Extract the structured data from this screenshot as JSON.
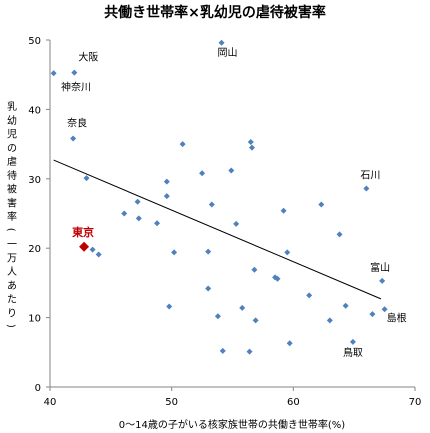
{
  "chart_data": {
    "type": "scatter",
    "title": "共働き世帯率×乳幼児の虐待被害率",
    "xlabel": "0〜14歳の子がいる核家族世帯の共働き世帯率(%)",
    "ylabel": "乳幼児の虐待被害率(一万人あたり)",
    "xlim": [
      40,
      70
    ],
    "ylim": [
      0,
      50
    ],
    "x_ticks": [
      40,
      50,
      60,
      70
    ],
    "y_ticks": [
      0,
      10,
      20,
      30,
      40,
      50
    ],
    "grid": false,
    "colors": {
      "points": "#4f81bd",
      "highlight": "#c00000",
      "trend": "#000000",
      "axis": "#868686"
    },
    "trendline": {
      "x": [
        40.3,
        67.2
      ],
      "y": [
        32.7,
        12.7
      ]
    },
    "points": [
      {
        "x": 40.3,
        "y": 45.2,
        "label": ""
      },
      {
        "x": 42.0,
        "y": 45.3,
        "label": "大阪"
      },
      {
        "x": 41.9,
        "y": 35.8,
        "label": "奈良"
      },
      {
        "x": 43.0,
        "y": 30.1,
        "label": ""
      },
      {
        "x": 43.5,
        "y": 19.8,
        "label": ""
      },
      {
        "x": 44.0,
        "y": 19.1,
        "label": ""
      },
      {
        "x": 46.1,
        "y": 25.0,
        "label": ""
      },
      {
        "x": 47.2,
        "y": 26.7,
        "label": ""
      },
      {
        "x": 47.3,
        "y": 24.3,
        "label": ""
      },
      {
        "x": 48.8,
        "y": 23.6,
        "label": ""
      },
      {
        "x": 49.6,
        "y": 29.6,
        "label": ""
      },
      {
        "x": 49.6,
        "y": 27.5,
        "label": ""
      },
      {
        "x": 49.8,
        "y": 11.6,
        "label": ""
      },
      {
        "x": 50.2,
        "y": 19.4,
        "label": ""
      },
      {
        "x": 50.9,
        "y": 35.0,
        "label": ""
      },
      {
        "x": 52.5,
        "y": 30.8,
        "label": ""
      },
      {
        "x": 53.0,
        "y": 19.5,
        "label": ""
      },
      {
        "x": 53.0,
        "y": 14.2,
        "label": ""
      },
      {
        "x": 53.3,
        "y": 26.3,
        "label": ""
      },
      {
        "x": 53.8,
        "y": 10.2,
        "label": ""
      },
      {
        "x": 54.2,
        "y": 5.2,
        "label": ""
      },
      {
        "x": 54.1,
        "y": 49.6,
        "label": "岡山"
      },
      {
        "x": 54.9,
        "y": 31.2,
        "label": ""
      },
      {
        "x": 55.3,
        "y": 23.5,
        "label": ""
      },
      {
        "x": 55.8,
        "y": 11.4,
        "label": ""
      },
      {
        "x": 56.5,
        "y": 35.3,
        "label": ""
      },
      {
        "x": 56.6,
        "y": 34.5,
        "label": ""
      },
      {
        "x": 56.4,
        "y": 5.1,
        "label": ""
      },
      {
        "x": 56.8,
        "y": 16.9,
        "label": ""
      },
      {
        "x": 56.9,
        "y": 9.6,
        "label": ""
      },
      {
        "x": 58.5,
        "y": 15.8,
        "label": ""
      },
      {
        "x": 58.7,
        "y": 15.6,
        "label": ""
      },
      {
        "x": 59.2,
        "y": 25.4,
        "label": ""
      },
      {
        "x": 59.5,
        "y": 19.4,
        "label": ""
      },
      {
        "x": 59.7,
        "y": 6.3,
        "label": ""
      },
      {
        "x": 61.3,
        "y": 13.2,
        "label": ""
      },
      {
        "x": 62.3,
        "y": 26.3,
        "label": ""
      },
      {
        "x": 63.0,
        "y": 9.6,
        "label": ""
      },
      {
        "x": 63.8,
        "y": 22.0,
        "label": ""
      },
      {
        "x": 64.3,
        "y": 11.7,
        "label": ""
      },
      {
        "x": 64.9,
        "y": 6.5,
        "label": "鳥取"
      },
      {
        "x": 66.0,
        "y": 28.6,
        "label": "石川"
      },
      {
        "x": 66.5,
        "y": 10.5,
        "label": ""
      },
      {
        "x": 67.3,
        "y": 15.3,
        "label": "富山"
      },
      {
        "x": 67.5,
        "y": 11.2,
        "label": "島根"
      }
    ],
    "highlight": {
      "x": 42.8,
      "y": 20.2,
      "label": "東京"
    },
    "extra_labels": [
      {
        "text": "神奈川"
      }
    ]
  }
}
